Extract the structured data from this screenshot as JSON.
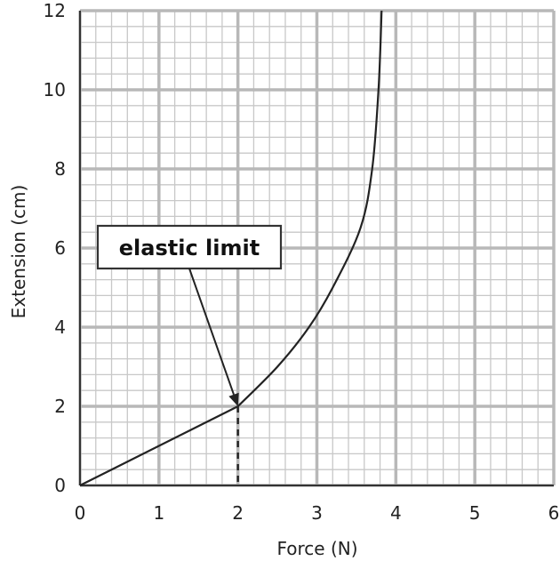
{
  "chart_data": {
    "type": "line",
    "xlabel": "Force (N)",
    "ylabel": "Extension (cm)",
    "xlim": [
      0,
      6
    ],
    "ylim": [
      0,
      12
    ],
    "xticks": [
      0,
      1,
      2,
      3,
      4,
      5,
      6
    ],
    "yticks": [
      0,
      2,
      4,
      6,
      8,
      10,
      12
    ],
    "grid": true,
    "minor_grid_step": {
      "x": 0.2,
      "y": 0.4
    },
    "series": [
      {
        "x": [
          0,
          2,
          2.5,
          2.9,
          3.2,
          3.55,
          3.7,
          3.78,
          3.82
        ],
        "y": [
          0,
          2,
          3,
          4,
          5,
          6.5,
          8,
          10,
          12
        ]
      }
    ],
    "annotations": [
      {
        "text": "elastic limit",
        "point": [
          2,
          2
        ],
        "dashed_drop_to_axis": true
      }
    ],
    "colors": {
      "line": "#222222",
      "major_grid": "#b8b8b8",
      "minor_grid": "#c8c8c8",
      "annotation_border": "#333333"
    }
  }
}
